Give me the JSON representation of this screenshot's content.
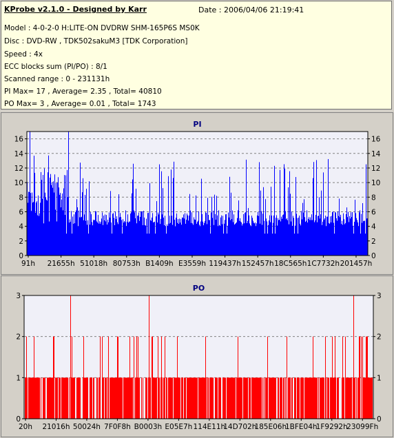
{
  "header": {
    "title": "KProbe v2.1.0 - Designed by Karr",
    "date_line": "Date : 2006/04/06 21:19:41",
    "lines": [
      "Model : 4-0-2-0 H:LITE-ON DVDRW SHM-165P6S MS0K",
      "Disc : DVD-RW , TDK502sakuM3 [TDK Corporation]",
      "Speed : 4x",
      "ECC blocks sum (PI/PO) : 8/1",
      "Scanned range : 0 - 231131h",
      "PI Max= 17 , Average= 2.35 , Total= 40810",
      "PO Max= 3 , Average= 0.01 , Total= 1743"
    ]
  },
  "colors": {
    "pi_bar": "#0000ff",
    "po_bar": "#ff0000",
    "plot_bg": "#f0f0f8",
    "grid": "#808080",
    "title": "#000080"
  },
  "chart_data": [
    {
      "type": "bar",
      "title": "PI",
      "ylim": [
        0,
        17
      ],
      "yticks": [
        0,
        2,
        4,
        6,
        8,
        10,
        12,
        14,
        16
      ],
      "xtick_labels": [
        "91h",
        "21655h",
        "51018h",
        "80753h",
        "B1409h",
        "E3559h",
        "119437h",
        "152457h",
        "18C565h",
        "1C7732h",
        "201457h"
      ],
      "grid": true,
      "max": 17,
      "average": 2.35,
      "series": [
        {
          "typical_range": [
            4,
            6
          ]
        }
      ]
    },
    {
      "type": "bar",
      "title": "PO",
      "ylim": [
        0,
        3
      ],
      "yticks": [
        0,
        1,
        2,
        3
      ],
      "xtick_labels": [
        "20h",
        "21016h",
        "50024h",
        "7F0F8h",
        "B0003h",
        "E05E7h",
        "114E11h",
        "14D702h",
        "185E06h",
        "1BFE04h",
        "1F9292h",
        "23099Fh"
      ],
      "grid": true,
      "max": 3,
      "average": 0.01,
      "series": [
        {
          "typical_range": [
            0,
            1
          ]
        }
      ]
    }
  ]
}
